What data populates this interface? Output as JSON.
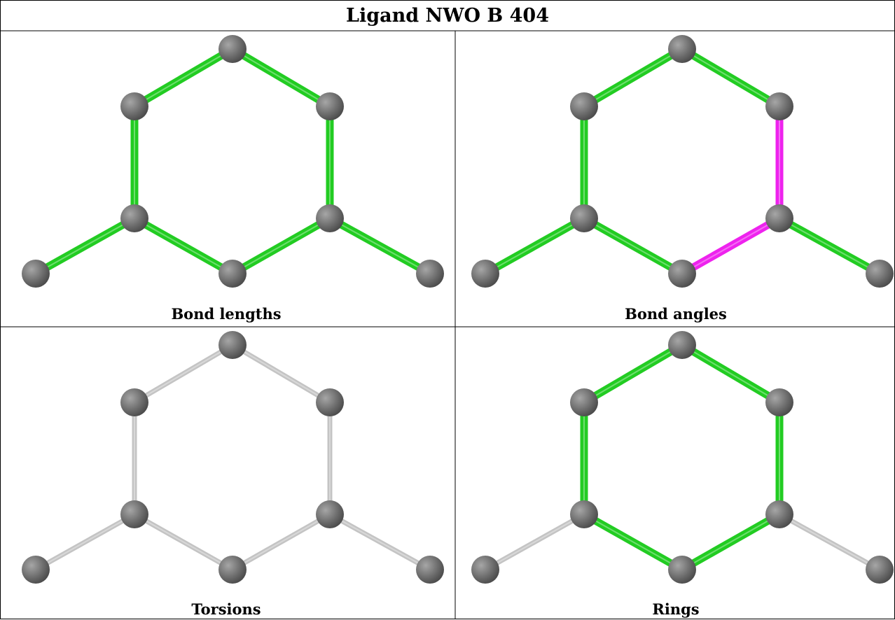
{
  "title": "Ligand NWO B 404",
  "panels": [
    {
      "caption": "Bond lengths",
      "bond_colors": [
        "green",
        "green",
        "green",
        "green",
        "green",
        "green",
        "green",
        "green"
      ]
    },
    {
      "caption": "Bond angles",
      "bond_colors": [
        "green",
        "green",
        "magenta",
        "magenta",
        "green",
        "green",
        "green",
        "green"
      ]
    },
    {
      "caption": "Torsions",
      "bond_colors": [
        "gray",
        "gray",
        "gray",
        "gray",
        "gray",
        "gray",
        "gray",
        "gray"
      ]
    },
    {
      "caption": "Rings",
      "bond_colors": [
        "green",
        "green",
        "green",
        "green",
        "green",
        "green",
        "gray",
        "gray"
      ]
    }
  ],
  "colors": {
    "green": "#22cc22",
    "magenta": "#ee22ee",
    "gray": "#c4c4c4",
    "atom": "#6e6e6e",
    "border": "#000000"
  }
}
